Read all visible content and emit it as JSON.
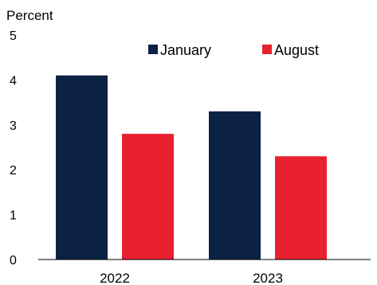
{
  "chart_data": {
    "type": "bar",
    "title": "",
    "ylabel": "Percent",
    "xlabel": "",
    "categories": [
      "2022",
      "2023"
    ],
    "series": [
      {
        "name": "January",
        "values": [
          4.1,
          3.3
        ],
        "color": "#0b2244"
      },
      {
        "name": "August",
        "values": [
          2.8,
          2.3
        ],
        "color": "#e8202f"
      }
    ],
    "ylim": [
      0,
      5
    ],
    "yticks": [
      "0",
      "1",
      "2",
      "3",
      "4",
      "5"
    ],
    "grid": false,
    "legend_position": "top"
  }
}
